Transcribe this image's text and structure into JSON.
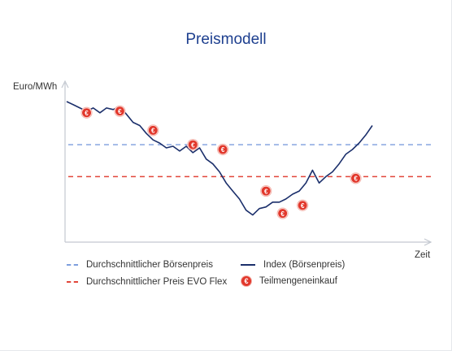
{
  "chart_data": {
    "type": "line",
    "title": "Preismodell",
    "ylabel": "Euro/MWh",
    "xlabel": "Zeit",
    "xlim": [
      0,
      100
    ],
    "ylim": [
      0,
      100
    ],
    "grid": false,
    "legend_position": "bottom",
    "series": [
      {
        "name": "Index (Börsenpreis)",
        "kind": "line",
        "color": "#1b2f6b",
        "x": [
          0,
          2,
          4,
          6,
          8,
          10,
          12,
          14,
          16,
          18,
          20,
          22,
          24,
          26,
          28,
          30,
          32,
          34,
          36,
          38,
          40,
          42,
          44,
          46,
          48,
          50,
          52,
          54,
          56,
          58,
          60,
          62,
          64,
          66,
          68,
          70,
          72,
          74,
          76,
          78,
          80,
          82,
          84,
          86,
          88,
          90,
          92
        ],
        "y": [
          87,
          85,
          83,
          81,
          83,
          80,
          83,
          82,
          84,
          79,
          74,
          72,
          67,
          63,
          61,
          58,
          59,
          56,
          59,
          55,
          58,
          51,
          48,
          43,
          36,
          31,
          26,
          19,
          16,
          20,
          21,
          24,
          24,
          26,
          29,
          31,
          36,
          44,
          36,
          40,
          43,
          48,
          54,
          57,
          61,
          66,
          72
        ]
      },
      {
        "name": "Durchschnittlicher Börsenpreis",
        "kind": "hline",
        "color": "#7d9ede",
        "y": 60
      },
      {
        "name": "Durchschnittlicher Preis EVO Flex",
        "kind": "hline",
        "color": "#e2463a",
        "y": 40
      },
      {
        "name": "Teilmengeneinkauf",
        "kind": "markers",
        "color": "#e2382c",
        "symbol": "€",
        "x": [
          6,
          16,
          26,
          38,
          47,
          60,
          65,
          71,
          87
        ],
        "y": [
          80,
          81,
          69,
          60,
          57,
          31,
          17,
          22,
          39
        ]
      }
    ]
  },
  "legend": {
    "item_avg_market": "Durchschnittlicher Börsenpreis",
    "item_index": "Index (Börsenpreis)",
    "item_avg_evo": "Durchschnittlicher Preis EVO Flex",
    "item_purchase": "Teilmengeneinkauf",
    "euro_symbol": "€"
  }
}
